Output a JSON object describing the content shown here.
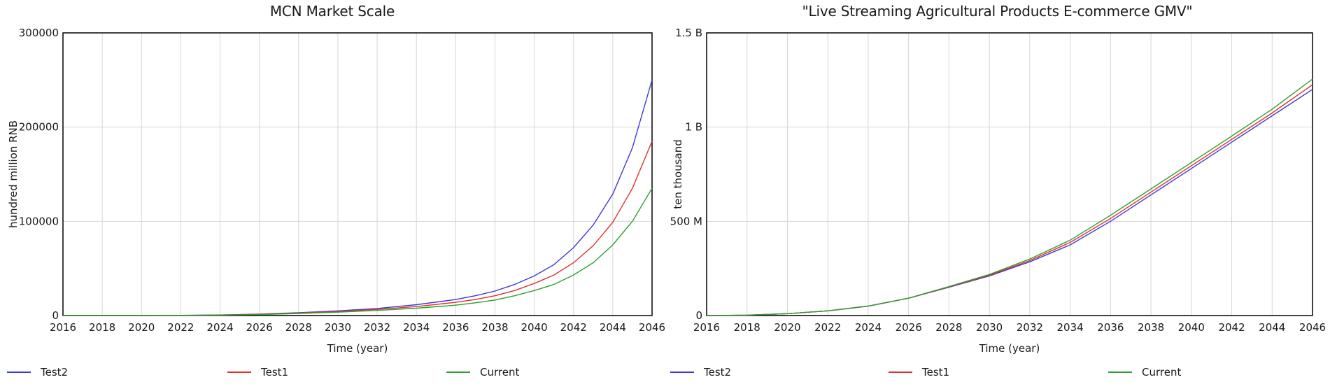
{
  "chart_data": [
    {
      "type": "line",
      "title": "MCN Market Scale",
      "xlabel": "Time (year)",
      "ylabel": "hundred million RNB",
      "xlim": [
        2016,
        2046
      ],
      "ylim": [
        0,
        300000
      ],
      "xticks": [
        "2016",
        "2018",
        "2020",
        "2022",
        "2024",
        "2026",
        "2028",
        "2030",
        "2032",
        "2034",
        "2036",
        "2038",
        "2040",
        "2042",
        "2044",
        "2046"
      ],
      "yticks": [
        {
          "value": 0,
          "label": "0"
        },
        {
          "value": 100000,
          "label": "100000"
        },
        {
          "value": 200000,
          "label": "200000"
        },
        {
          "value": 300000,
          "label": "300000"
        }
      ],
      "grid": true,
      "legend_position": "bottom",
      "x": [
        2016,
        2018,
        2020,
        2022,
        2024,
        2026,
        2028,
        2030,
        2032,
        2034,
        2036,
        2037,
        2038,
        2039,
        2040,
        2041,
        2042,
        2043,
        2044,
        2045,
        2046
      ],
      "series": [
        {
          "name": "Test2",
          "color": "#3b3bd6",
          "values": [
            0,
            0,
            50,
            200,
            600,
            1500,
            3000,
            5000,
            7500,
            11500,
            17000,
            21000,
            26000,
            33000,
            42000,
            54000,
            72000,
            96000,
            129000,
            178000,
            250000
          ]
        },
        {
          "name": "Test1",
          "color": "#e03030",
          "values": [
            0,
            0,
            50,
            150,
            500,
            1300,
            2600,
            4300,
            6500,
            9500,
            14000,
            17000,
            21000,
            26500,
            34000,
            43000,
            56000,
            74000,
            99000,
            135000,
            185000
          ]
        },
        {
          "name": "Current",
          "color": "#2ca02c",
          "values": [
            0,
            0,
            50,
            120,
            400,
            1000,
            2200,
            3600,
            5400,
            7800,
            11000,
            13500,
            16500,
            21000,
            26500,
            33000,
            43000,
            56000,
            75000,
            100000,
            135000
          ]
        }
      ]
    },
    {
      "type": "line",
      "title": "\"Live Streaming Agricultural Products E-commerce GMV\"",
      "xlabel": "Time (year)",
      "ylabel": "ten thousand",
      "xlim": [
        2016,
        2046
      ],
      "ylim": [
        0,
        1500000000
      ],
      "xticks": [
        "2016",
        "2018",
        "2020",
        "2022",
        "2024",
        "2026",
        "2028",
        "2030",
        "2032",
        "2034",
        "2036",
        "2038",
        "2040",
        "2042",
        "2044",
        "2046"
      ],
      "yticks": [
        {
          "value": 0,
          "label": "0"
        },
        {
          "value": 500000000,
          "label": "500 M"
        },
        {
          "value": 1000000000,
          "label": "1 B"
        },
        {
          "value": 1500000000,
          "label": "1.5 B"
        }
      ],
      "grid": true,
      "legend_position": "bottom",
      "x": [
        2016,
        2018,
        2020,
        2022,
        2024,
        2026,
        2028,
        2030,
        2032,
        2034,
        2036,
        2038,
        2040,
        2042,
        2044,
        2046
      ],
      "series": [
        {
          "name": "Test2",
          "color": "#3b3bd6",
          "values": [
            0,
            2000000,
            10000000,
            25000000,
            50000000,
            92000000,
            150000000,
            210000000,
            285000000,
            375000000,
            500000000,
            640000000,
            780000000,
            920000000,
            1060000000,
            1200000000
          ]
        },
        {
          "name": "Test1",
          "color": "#e03030",
          "values": [
            0,
            2000000,
            10000000,
            25000000,
            50000000,
            92000000,
            152000000,
            214000000,
            292000000,
            388000000,
            515000000,
            655000000,
            795000000,
            935000000,
            1075000000,
            1225000000
          ]
        },
        {
          "name": "Current",
          "color": "#2ca02c",
          "values": [
            0,
            2000000,
            10000000,
            25000000,
            50000000,
            92000000,
            154000000,
            218000000,
            300000000,
            400000000,
            532000000,
            672000000,
            812000000,
            952000000,
            1095000000,
            1255000000
          ]
        }
      ]
    }
  ]
}
